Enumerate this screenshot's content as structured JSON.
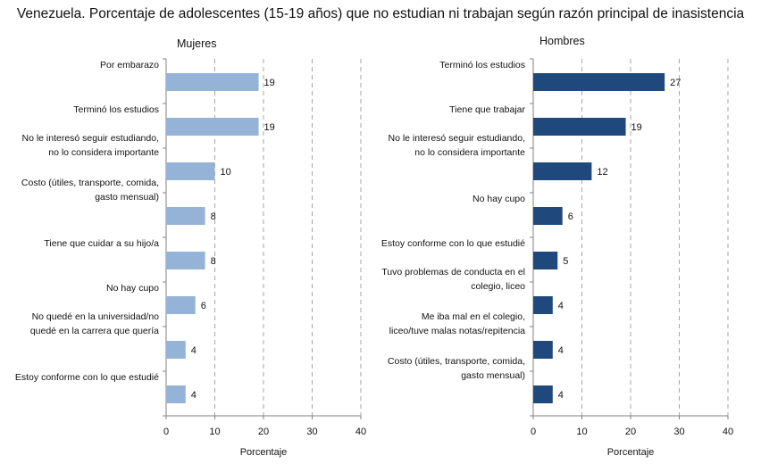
{
  "title": "Venezuela. Porcentaje de adolescentes (15-19 años) que no estudian ni trabajan según razón principal de inasistencia",
  "colors": {
    "mujeres": "#95b3d7",
    "hombres": "#1f497d",
    "grid": "#a6a6a6"
  },
  "chart_data": [
    {
      "type": "bar",
      "orientation": "horizontal",
      "title": "Mujeres",
      "xlabel": "Porcentaje",
      "xlim": [
        0,
        40
      ],
      "xticks": [
        0,
        10,
        20,
        30,
        40
      ],
      "grid": true,
      "categories": [
        "Por embarazo",
        "Terminó los estudios",
        "No le interesó seguir estudiando,\nno lo considera importante",
        "Costo (útiles, transporte, comida,\ngasto mensual)",
        "Tiene que cuidar a su hijo/a",
        "No hay cupo",
        "No quedé en la universidad/no\nquedé en la carrera que quería",
        "Estoy conforme con lo que estudié"
      ],
      "values": [
        19,
        19,
        10,
        8,
        8,
        6,
        4,
        4
      ],
      "color": "#95b3d7"
    },
    {
      "type": "bar",
      "orientation": "horizontal",
      "title": "Hombres",
      "xlabel": "Porcentaje",
      "xlim": [
        0,
        40
      ],
      "xticks": [
        0,
        10,
        20,
        30,
        40
      ],
      "grid": true,
      "categories": [
        "Terminó los estudios",
        "Tiene que trabajar",
        "No le interesó seguir estudiando,\nno lo considera importante",
        "No hay cupo",
        "Estoy conforme con lo que estudié",
        "Tuvo problemas de conducta en el\ncolegio, liceo",
        "Me iba mal en el colegio,\nliceo/tuve malas notas/repitencia",
        "Costo (útiles, transporte, comida,\ngasto mensual)"
      ],
      "values": [
        27,
        19,
        12,
        6,
        5,
        4,
        4,
        4
      ],
      "color": "#1f497d"
    }
  ]
}
